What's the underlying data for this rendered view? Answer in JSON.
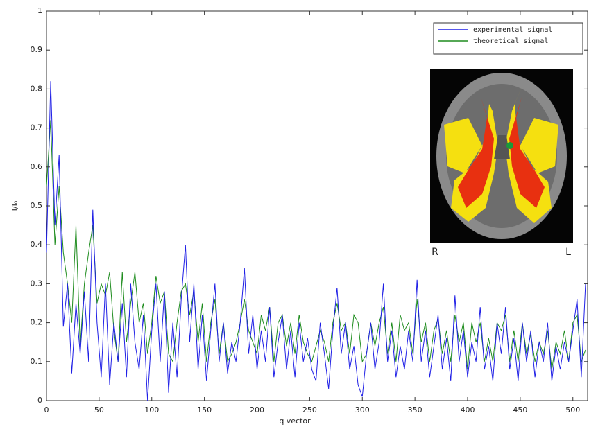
{
  "chart_data": {
    "type": "line",
    "xlabel": "q vector",
    "ylabel": "I/I₀",
    "xlim": [
      0,
      514
    ],
    "ylim": [
      0,
      1
    ],
    "xticks": [
      0,
      50,
      100,
      150,
      200,
      250,
      300,
      350,
      400,
      450,
      500
    ],
    "yticks": [
      0,
      0.1,
      0.2,
      0.3,
      0.4,
      0.5,
      0.6,
      0.7,
      0.8,
      0.9,
      1
    ],
    "legend": "upper right",
    "inset_labels": [
      "R",
      "L"
    ],
    "x": [
      0,
      4,
      8,
      12,
      16,
      20,
      24,
      28,
      32,
      36,
      40,
      44,
      48,
      52,
      56,
      60,
      64,
      68,
      72,
      76,
      80,
      84,
      88,
      92,
      96,
      100,
      104,
      108,
      112,
      116,
      120,
      124,
      128,
      132,
      136,
      140,
      144,
      148,
      152,
      156,
      160,
      164,
      168,
      172,
      176,
      180,
      184,
      188,
      192,
      196,
      200,
      204,
      208,
      212,
      216,
      220,
      224,
      228,
      232,
      236,
      240,
      244,
      248,
      252,
      256,
      260,
      264,
      268,
      272,
      276,
      280,
      284,
      288,
      292,
      296,
      300,
      304,
      308,
      312,
      316,
      320,
      324,
      328,
      332,
      336,
      340,
      344,
      348,
      352,
      356,
      360,
      364,
      368,
      372,
      376,
      380,
      384,
      388,
      392,
      396,
      400,
      404,
      408,
      412,
      416,
      420,
      424,
      428,
      432,
      436,
      440,
      444,
      448,
      452,
      456,
      460,
      464,
      468,
      472,
      476,
      480,
      484,
      488,
      492,
      496,
      500,
      504,
      508,
      512
    ],
    "series": [
      {
        "name": "experimental signal",
        "color": "#1f1fe6",
        "values": [
          0.38,
          0.82,
          0.45,
          0.63,
          0.19,
          0.3,
          0.07,
          0.25,
          0.12,
          0.28,
          0.1,
          0.49,
          0.2,
          0.06,
          0.3,
          0.04,
          0.2,
          0.1,
          0.25,
          0.06,
          0.3,
          0.15,
          0.08,
          0.22,
          0,
          0.18,
          0.3,
          0.1,
          0.28,
          0.02,
          0.2,
          0.06,
          0.26,
          0.4,
          0.15,
          0.3,
          0.08,
          0.22,
          0.05,
          0.18,
          0.3,
          0.1,
          0.2,
          0.07,
          0.15,
          0.1,
          0.2,
          0.34,
          0.12,
          0.22,
          0.08,
          0.18,
          0.1,
          0.24,
          0.06,
          0.15,
          0.22,
          0.08,
          0.18,
          0.06,
          0.2,
          0.1,
          0.16,
          0.08,
          0.05,
          0.2,
          0.12,
          0.03,
          0.18,
          0.29,
          0.12,
          0.2,
          0.08,
          0.14,
          0.04,
          0.01,
          0.12,
          0.2,
          0.08,
          0.15,
          0.3,
          0.1,
          0.18,
          0.06,
          0.14,
          0.08,
          0.18,
          0.1,
          0.31,
          0.1,
          0.18,
          0.06,
          0.14,
          0.22,
          0.08,
          0.16,
          0.05,
          0.27,
          0.1,
          0.18,
          0.06,
          0.15,
          0.1,
          0.24,
          0.08,
          0.14,
          0.05,
          0.2,
          0.12,
          0.24,
          0.08,
          0.16,
          0.05,
          0.2,
          0.1,
          0.18,
          0.06,
          0.15,
          0.1,
          0.2,
          0.05,
          0.14,
          0.08,
          0.15,
          0.1,
          0.18,
          0.26,
          0.06,
          0.3
        ]
      },
      {
        "name": "theoretical signal",
        "color": "#1e8c1e",
        "values": [
          0.55,
          0.72,
          0.4,
          0.55,
          0.38,
          0.3,
          0.2,
          0.45,
          0.14,
          0.3,
          0.38,
          0.45,
          0.25,
          0.3,
          0.27,
          0.33,
          0.18,
          0.1,
          0.33,
          0.15,
          0.25,
          0.33,
          0.2,
          0.25,
          0.12,
          0.2,
          0.32,
          0.25,
          0.28,
          0.12,
          0.1,
          0.2,
          0.28,
          0.3,
          0.22,
          0.28,
          0.15,
          0.25,
          0.1,
          0.2,
          0.26,
          0.12,
          0.2,
          0.1,
          0.12,
          0.15,
          0.2,
          0.26,
          0.18,
          0.15,
          0.12,
          0.22,
          0.18,
          0.24,
          0.1,
          0.2,
          0.22,
          0.14,
          0.2,
          0.12,
          0.22,
          0.15,
          0.12,
          0.1,
          0.14,
          0.18,
          0.15,
          0.1,
          0.2,
          0.25,
          0.18,
          0.2,
          0.12,
          0.22,
          0.2,
          0.1,
          0.12,
          0.2,
          0.14,
          0.2,
          0.24,
          0.12,
          0.2,
          0.1,
          0.22,
          0.18,
          0.2,
          0.12,
          0.26,
          0.15,
          0.2,
          0.1,
          0.18,
          0.21,
          0.12,
          0.18,
          0.1,
          0.22,
          0.15,
          0.2,
          0.08,
          0.2,
          0.15,
          0.2,
          0.1,
          0.16,
          0.1,
          0.2,
          0.18,
          0.22,
          0.1,
          0.18,
          0.1,
          0.2,
          0.12,
          0.17,
          0.1,
          0.15,
          0.12,
          0.18,
          0.08,
          0.15,
          0.12,
          0.18,
          0.1,
          0.2,
          0.22,
          0.1,
          0.13
        ]
      }
    ]
  }
}
